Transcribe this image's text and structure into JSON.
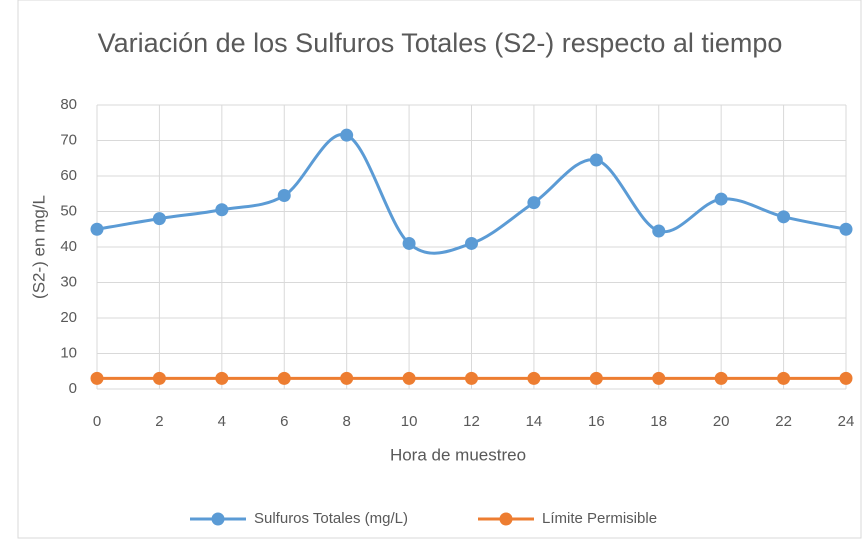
{
  "chart_data": {
    "type": "line",
    "title": "Variación de los Sulfuros Totales (S2-) respecto al tiempo",
    "x_label": "Hora de muestreo",
    "y_label": "(S2-) en mg/L",
    "x": [
      0,
      2,
      4,
      6,
      8,
      10,
      12,
      14,
      16,
      18,
      20,
      22,
      24
    ],
    "series": [
      {
        "name": "Sulfuros Totales (mg/L)",
        "color": "#5b9bd5",
        "values": [
          45,
          48,
          50.5,
          54.5,
          71.5,
          41,
          41,
          52.5,
          64.5,
          44.5,
          53.5,
          48.5,
          45
        ]
      },
      {
        "name": "Límite Permisible",
        "color": "#ed7d31",
        "values": [
          3,
          3,
          3,
          3,
          3,
          3,
          3,
          3,
          3,
          3,
          3,
          3,
          3
        ]
      }
    ],
    "xlim": [
      0,
      24
    ],
    "xticks": [
      0,
      2,
      4,
      6,
      8,
      10,
      12,
      14,
      16,
      18,
      20,
      22,
      24
    ],
    "ylim": [
      0,
      80
    ],
    "yticks": [
      0,
      10,
      20,
      30,
      40,
      50,
      60,
      70,
      80
    ],
    "grid": true,
    "smooth": true,
    "legend": "bottom"
  }
}
